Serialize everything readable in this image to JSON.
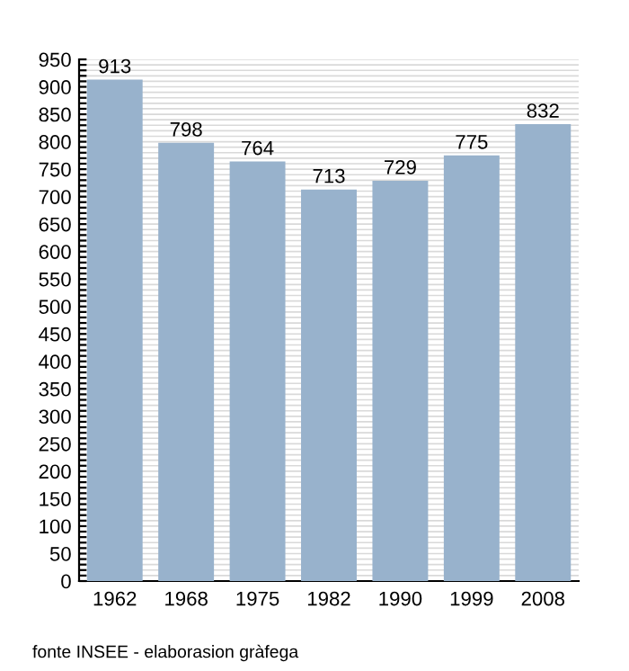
{
  "chart_data": {
    "type": "bar",
    "categories": [
      "1962",
      "1968",
      "1975",
      "1982",
      "1990",
      "1999",
      "2008"
    ],
    "values": [
      913,
      798,
      764,
      713,
      729,
      775,
      832
    ],
    "color": "#98b2cc",
    "data_labels": true,
    "ylim": [
      0,
      950
    ],
    "yticks": [
      0,
      50,
      100,
      150,
      200,
      250,
      300,
      350,
      400,
      450,
      500,
      550,
      600,
      650,
      700,
      750,
      800,
      850,
      900,
      950,
      {
        "value": 10,
        "label": null
      },
      {
        "value": 20,
        "label": null
      },
      {
        "value": 30,
        "label": null
      },
      {
        "value": 40,
        "label": null
      },
      {
        "value": 60,
        "label": null
      },
      {
        "value": 70,
        "label": null
      },
      {
        "value": 80,
        "label": null
      },
      {
        "value": 90,
        "label": null
      },
      {
        "value": 110,
        "label": null
      },
      {
        "value": 120,
        "label": null
      },
      {
        "value": 130,
        "label": null
      },
      {
        "value": 140,
        "label": null
      },
      {
        "value": 160,
        "label": null
      },
      {
        "value": 170,
        "label": null
      },
      {
        "value": 180,
        "label": null
      },
      {
        "value": 190,
        "label": null
      },
      {
        "value": 210,
        "label": null
      },
      {
        "value": 220,
        "label": null
      },
      {
        "value": 230,
        "label": null
      },
      {
        "value": 240,
        "label": null
      },
      {
        "value": 260,
        "label": null
      },
      {
        "value": 270,
        "label": null
      },
      {
        "value": 280,
        "label": null
      },
      {
        "value": 290,
        "label": null
      },
      {
        "value": 310,
        "label": null
      },
      {
        "value": 320,
        "label": null
      },
      {
        "value": 330,
        "label": null
      },
      {
        "value": 340,
        "label": null
      },
      {
        "value": 360,
        "label": null
      },
      {
        "value": 370,
        "label": null
      },
      {
        "value": 380,
        "label": null
      },
      {
        "value": 390,
        "label": null
      },
      {
        "value": 410,
        "label": null
      },
      {
        "value": 420,
        "label": null
      },
      {
        "value": 430,
        "label": null
      },
      {
        "value": 440,
        "label": null
      },
      {
        "value": 460,
        "label": null
      },
      {
        "value": 470,
        "label": null
      },
      {
        "value": 480,
        "label": null
      },
      {
        "value": 490,
        "label": null
      },
      {
        "value": 510,
        "label": null
      },
      {
        "value": 520,
        "label": null
      },
      {
        "value": 530,
        "label": null
      },
      {
        "value": 540,
        "label": null
      },
      {
        "value": 560,
        "label": null
      },
      {
        "value": 570,
        "label": null
      },
      {
        "value": 580,
        "label": null
      },
      {
        "value": 590,
        "label": null
      },
      {
        "value": 610,
        "label": null
      },
      {
        "value": 620,
        "label": null
      },
      {
        "value": 630,
        "label": null
      },
      {
        "value": 640,
        "label": null
      },
      {
        "value": 660,
        "label": null
      },
      {
        "value": 670,
        "label": null
      },
      {
        "value": 680,
        "label": null
      },
      {
        "value": 690,
        "label": null
      },
      {
        "value": 710,
        "label": null
      },
      {
        "value": 720,
        "label": null
      },
      {
        "value": 730,
        "label": null
      },
      {
        "value": 740,
        "label": null
      },
      {
        "value": 760,
        "label": null
      },
      {
        "value": 770,
        "label": null
      },
      {
        "value": 780,
        "label": null
      },
      {
        "value": 790,
        "label": null
      },
      {
        "value": 810,
        "label": null
      },
      {
        "value": 820,
        "label": null
      },
      {
        "value": 830,
        "label": null
      },
      {
        "value": 840,
        "label": null
      },
      {
        "value": 860,
        "label": null
      },
      {
        "value": 870,
        "label": null
      },
      {
        "value": 880,
        "label": null
      },
      {
        "value": 890,
        "label": null
      },
      {
        "value": 910,
        "label": null
      },
      {
        "value": 920,
        "label": null
      },
      {
        "value": 930,
        "label": null
      },
      {
        "value": 940,
        "label": null
      }
    ],
    "grid": "y",
    "annotations": [
      "fonte INSEE - elaborasion gràfega"
    ]
  }
}
